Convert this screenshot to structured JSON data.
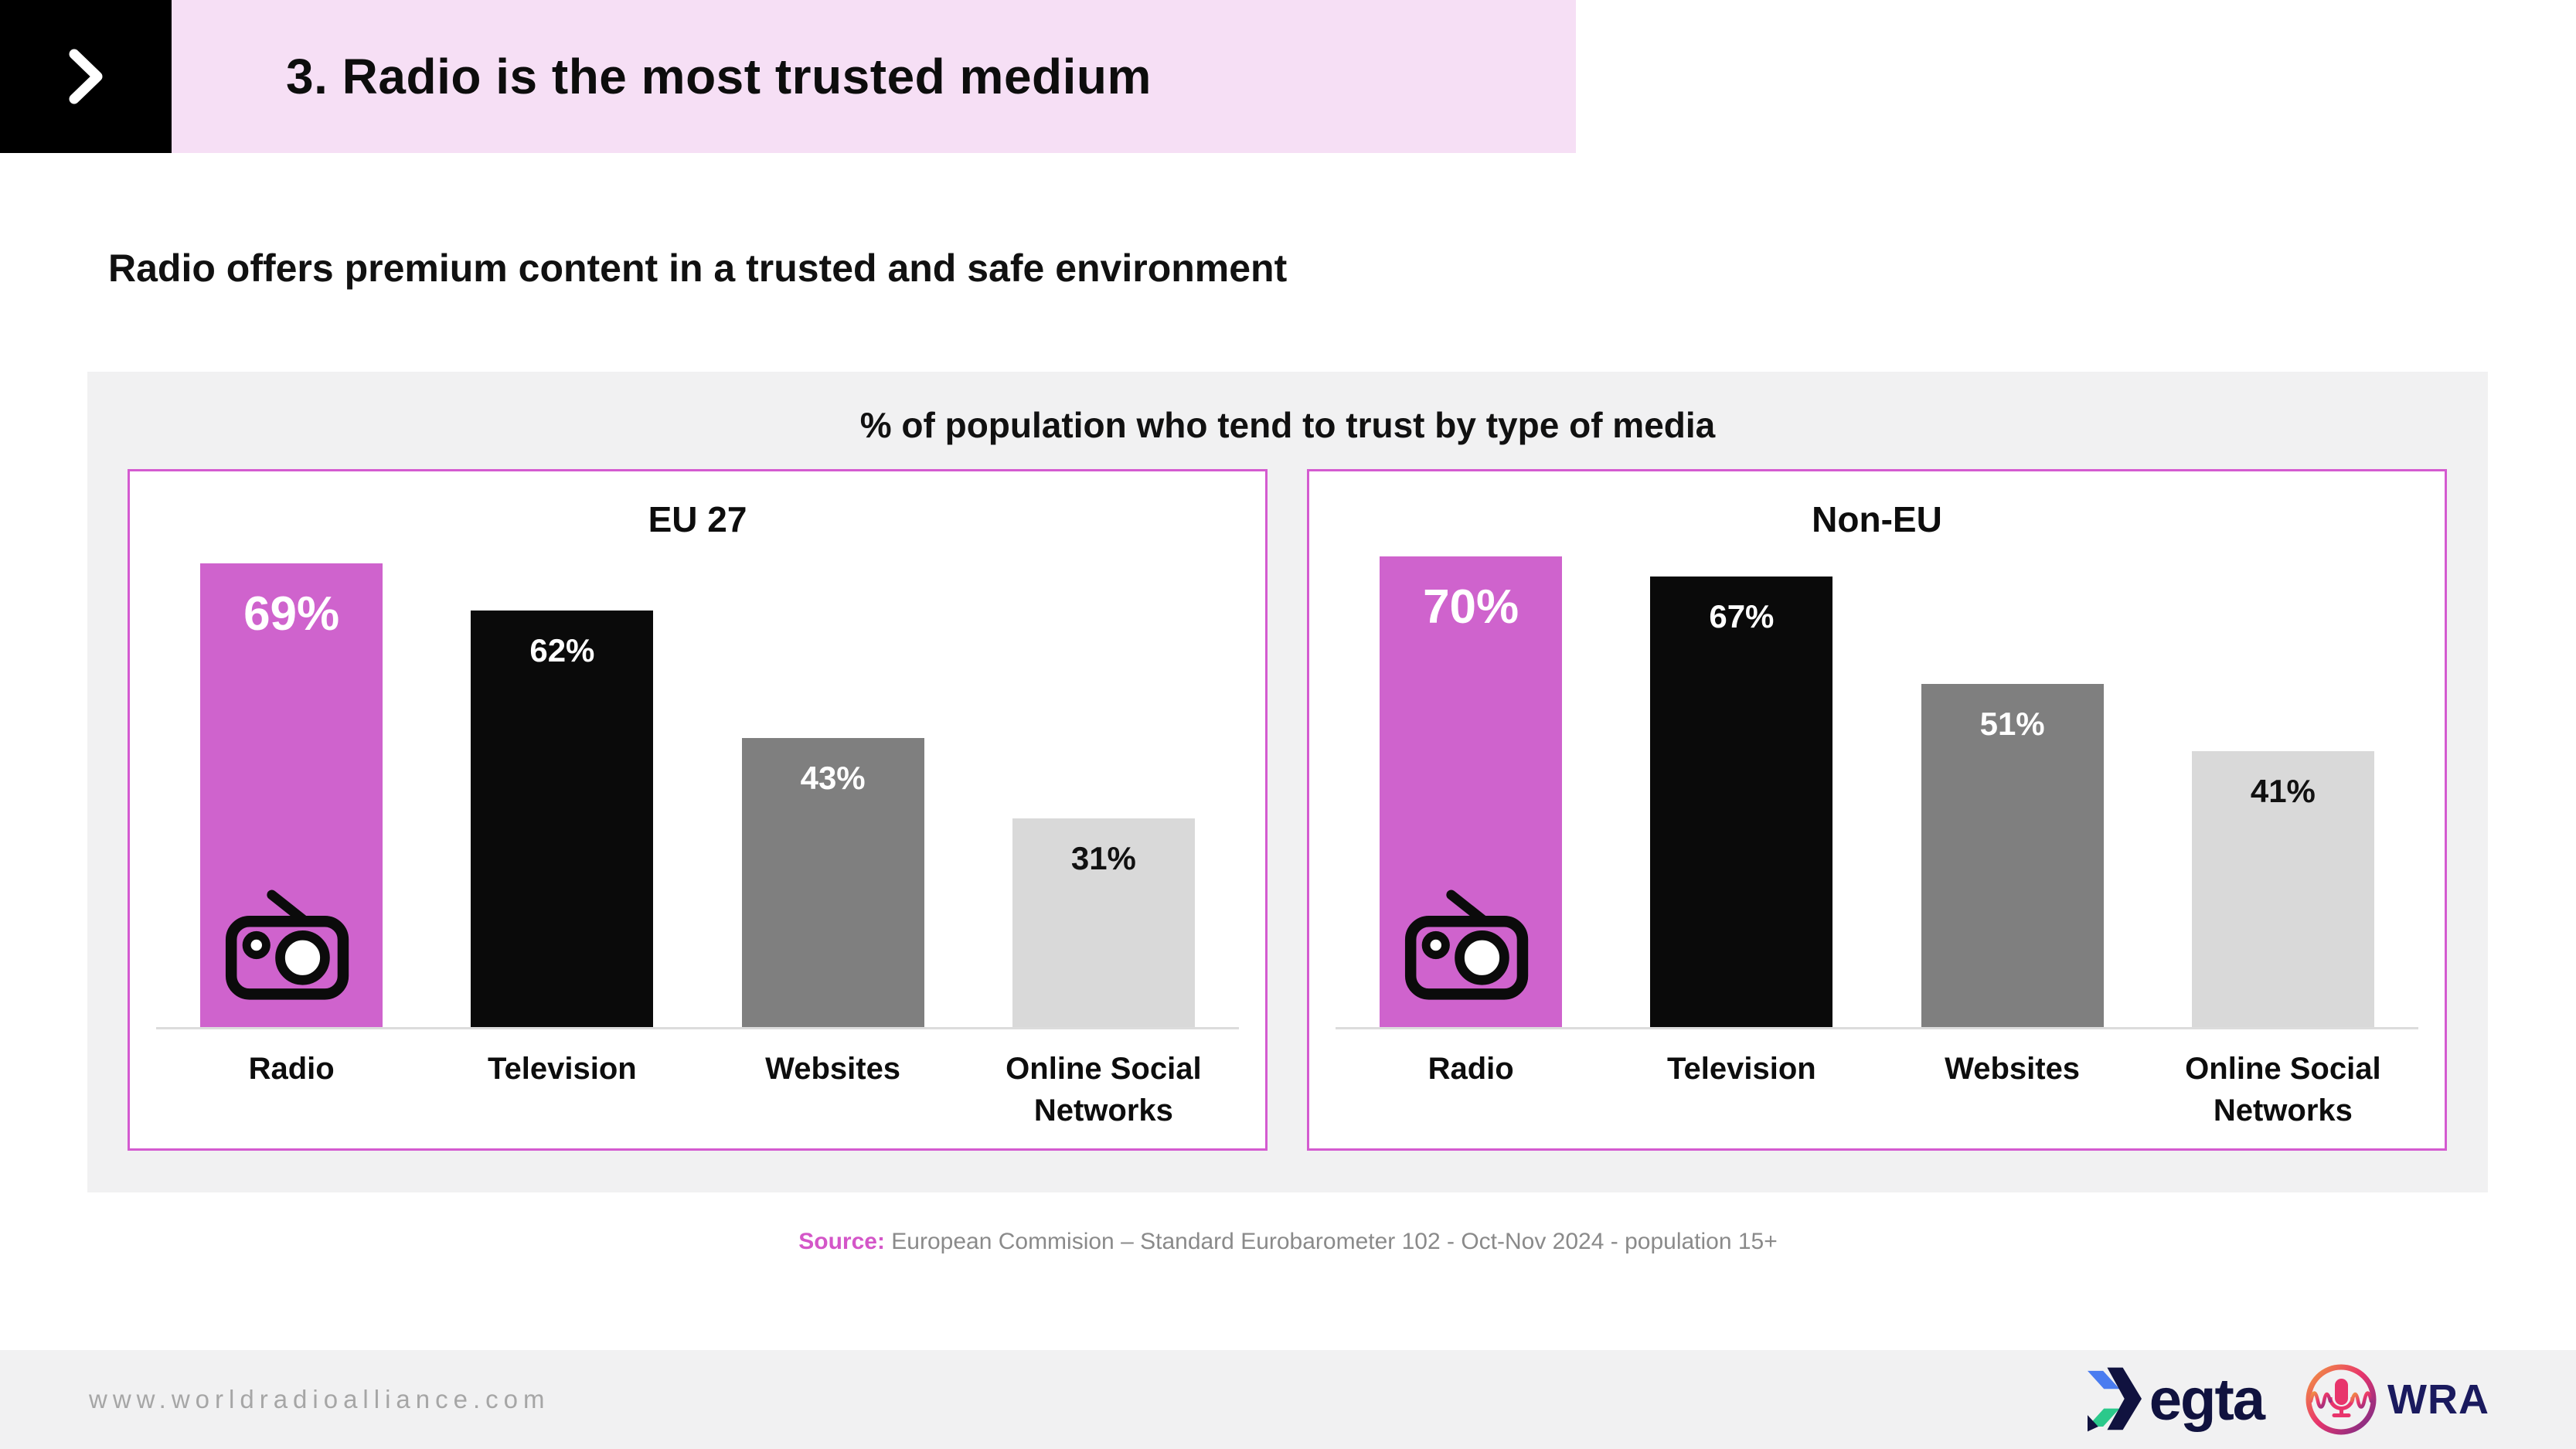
{
  "header": {
    "title": "3. Radio is the most trusted medium"
  },
  "subtitle": "Radio offers premium content in a trusted and safe environment",
  "chart_section": {
    "title": "% of population who tend to trust by type of media"
  },
  "chart_data": [
    {
      "type": "bar",
      "title": "EU 27",
      "categories": [
        "Radio",
        "Television",
        "Websites",
        "Online Social Networks"
      ],
      "values": [
        69,
        62,
        43,
        31
      ],
      "unit": "%",
      "ylim": [
        0,
        100
      ],
      "grid": false,
      "legend": false,
      "bar_colors": [
        "#cf63cd",
        "#0a0a0a",
        "#7f7f7f",
        "#d9d9d9"
      ],
      "value_label_colors": [
        "#ffffff",
        "#ffffff",
        "#ffffff",
        "#111111"
      ],
      "highlight_category": "Radio"
    },
    {
      "type": "bar",
      "title": "Non-EU",
      "categories": [
        "Radio",
        "Television",
        "Websites",
        "Online Social Networks"
      ],
      "values": [
        70,
        67,
        51,
        41
      ],
      "unit": "%",
      "ylim": [
        0,
        100
      ],
      "grid": false,
      "legend": false,
      "bar_colors": [
        "#cf63cd",
        "#0a0a0a",
        "#7f7f7f",
        "#d9d9d9"
      ],
      "value_label_colors": [
        "#ffffff",
        "#ffffff",
        "#ffffff",
        "#111111"
      ],
      "highlight_category": "Radio"
    }
  ],
  "source": {
    "label": "Source:",
    "text": " European Commision – Standard Eurobarometer 102 - Oct-Nov 2024 - population 15+"
  },
  "footer": {
    "url": "www.worldradioalliance.com",
    "logos": [
      {
        "name": "egta",
        "text": "egta"
      },
      {
        "name": "WRA",
        "text": "WRA"
      }
    ]
  },
  "colors": {
    "accent_magenta": "#cf63cd",
    "panel_border": "#d45bd0",
    "banner_pink": "#f6dff5",
    "card_gray": "#f1f1f2",
    "bar_black": "#0a0a0a",
    "bar_gray": "#7f7f7f",
    "bar_light_gray": "#d9d9d9",
    "source_label_pink": "#d456c8",
    "source_text_gray": "#8a8a8a",
    "footer_url_gray": "#a6a6a6",
    "egta_navy": "#10123f",
    "egta_blue": "#4a7cf0",
    "egta_green": "#2bc98b",
    "wra_navy": "#1a1a5e"
  }
}
